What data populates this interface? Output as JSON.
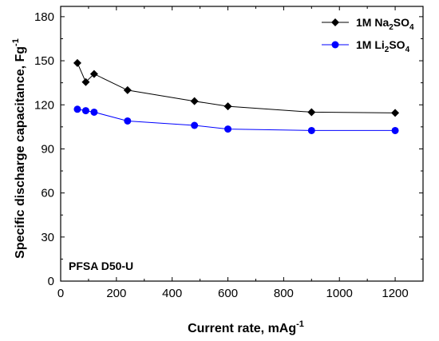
{
  "chart_data": {
    "type": "line",
    "xlabel": "Current rate, mAg",
    "xlabel_sup": "-1",
    "ylabel": "Specific discharge capacitance, Fg",
    "ylabel_sup": "-1",
    "xlim": [
      0,
      1300
    ],
    "ylim": [
      0,
      187
    ],
    "xticks": [
      0,
      200,
      400,
      600,
      800,
      1000,
      1200
    ],
    "yticks": [
      0,
      30,
      60,
      90,
      120,
      150,
      180
    ],
    "grid": false,
    "legend_position": "top-right",
    "annotation": "PFSA D50-U",
    "series": [
      {
        "name_parts": [
          "1M Na",
          "2",
          "SO",
          "4"
        ],
        "color": "#000000",
        "marker": "diamond",
        "x": [
          60,
          90,
          120,
          240,
          480,
          600,
          900,
          1200
        ],
        "y": [
          148.5,
          135.5,
          141,
          130,
          122.5,
          119,
          115,
          114.5
        ]
      },
      {
        "name_parts": [
          "1M Li",
          "2",
          "SO",
          "4"
        ],
        "color": "#0000ff",
        "marker": "circle",
        "x": [
          60,
          90,
          120,
          240,
          480,
          600,
          900,
          1200
        ],
        "y": [
          117,
          116,
          115,
          109,
          106,
          103.5,
          102.5,
          102.5
        ]
      }
    ]
  }
}
